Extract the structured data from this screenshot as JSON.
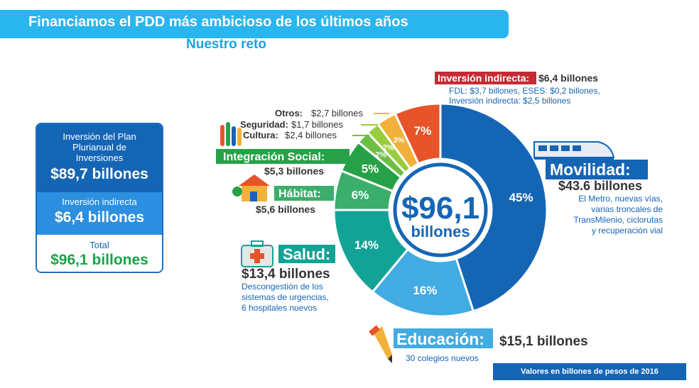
{
  "header": {
    "title": "Financiamos el PDD más ambicioso de los últimos años",
    "subtitle": "Nuestro reto"
  },
  "summary": {
    "plan_label": "Inversión del Plan Plurianual de Inversiones",
    "plan_value": "$89,7 billones",
    "indirect_label": "Inversión indirecta",
    "indirect_value": "$6,4 billones",
    "total_label": "Total",
    "total_value": "$96,1 billones"
  },
  "donut_center": {
    "line1": "$96,1",
    "line2": "billones"
  },
  "footer_note": "Valores en billones de pesos de 2016",
  "chart_data": {
    "type": "pie",
    "categories": [
      "Movilidad",
      "Educación",
      "Salud",
      "Hábitat",
      "Integración Social",
      "Cultura",
      "Seguridad",
      "Otros",
      "Inversión indirecta"
    ],
    "values": [
      45,
      16,
      14,
      6,
      5,
      2,
      2,
      3,
      7
    ],
    "value_labels": [
      "45%",
      "16%",
      "14%",
      "6%",
      "5%",
      "2%",
      "2%",
      "3%",
      "7%"
    ],
    "amounts": [
      "$43.6 billones",
      "$15,1 billones",
      "$13,4 billones",
      "$5,6 billones",
      "$5,3 billones",
      "$2,4 billones",
      "$1,7 billones",
      "$2,7 billones",
      "$6,4 billones"
    ],
    "colors": [
      "#1565b5",
      "#41abe2",
      "#13a396",
      "#3aae6a",
      "#27a148",
      "#6dbf44",
      "#9acd3c",
      "#f2b13a",
      "#e8542a"
    ],
    "category_labels": [
      "Movilidad:",
      "Educación:",
      "Salud:",
      "Hábitat:",
      "Integración Social:",
      "Cultura:",
      "Seguridad:",
      "Otros:",
      "Inversión indirecta:"
    ],
    "descriptions": {
      "movilidad": [
        "El Metro, nuevas vías,",
        "varias troncales de",
        "TransMilenio, ciclorutas",
        "y recuperación vial"
      ],
      "educacion": [
        "30 colegios nuevos"
      ],
      "salud": [
        "Descongestión de los",
        "sistemas de urgencias,",
        "6 hospitales nuevos"
      ],
      "indirecta": [
        "FDL: $3,7 billones, ESES: $0,2 billones,",
        "Inversión indirecta: $2,5 billones"
      ]
    }
  }
}
